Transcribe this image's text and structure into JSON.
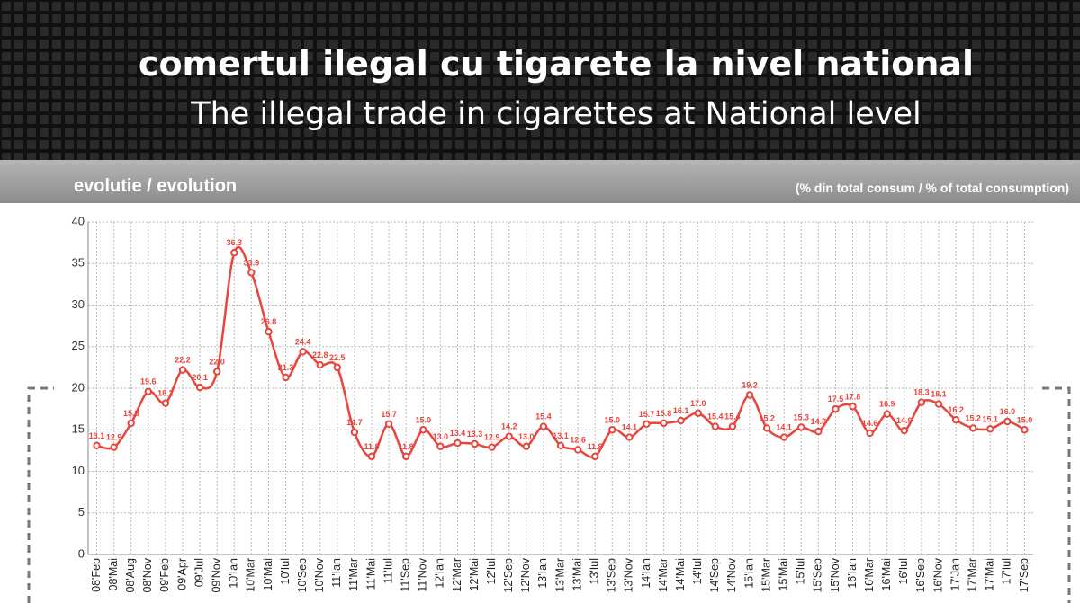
{
  "chart_data": {
    "type": "line",
    "title": "comertul ilegal cu tigarete la nivel national",
    "subtitle": "The illegal trade in cigarettes at National level",
    "panel_title": "evolutie / evolution",
    "unit_label": "(% din total consum / % of total consumption)",
    "categories": [
      "08'Feb",
      "08'Mai",
      "08'Aug",
      "08'Nov",
      "09'Feb",
      "09'Apr",
      "09'Jul",
      "09'Nov",
      "10'Ian",
      "10'Mar",
      "10'Mai",
      "10'Iul",
      "10'Sep",
      "10'Nov",
      "11'Ian",
      "11'Mar",
      "11'Mai",
      "11'Iul",
      "11'Sep",
      "11'Nov",
      "12'Ian",
      "12'Mar",
      "12'Mai",
      "12'Iul",
      "12'Sep",
      "12'Nov",
      "13'Ian",
      "13'Mar",
      "13'Mai",
      "13'Iul",
      "13'Sep",
      "13'Nov",
      "14'Ian",
      "14'Mar",
      "14'Mai",
      "14'Iul",
      "14'Sep",
      "14'Nov",
      "15'Ian",
      "15'Mar",
      "15'Mai",
      "15'Iul",
      "15'Sep",
      "15'Nov",
      "16'Ian",
      "16'Mar",
      "16'Mai",
      "16'Iul",
      "16'Sep",
      "16'Nov",
      "17'Jan",
      "17'Mar",
      "17'Mai",
      "17'Iul",
      "17'Sep"
    ],
    "values": [
      13.1,
      12.9,
      15.8,
      19.6,
      18.2,
      22.2,
      20.1,
      22.0,
      36.3,
      33.9,
      26.8,
      21.3,
      24.4,
      22.8,
      22.5,
      14.7,
      11.8,
      15.7,
      11.8,
      15.0,
      13.0,
      13.4,
      13.3,
      12.9,
      14.2,
      13.0,
      15.4,
      13.1,
      12.6,
      11.8,
      15.0,
      14.1,
      15.7,
      15.8,
      16.1,
      17.0,
      15.4,
      15.4,
      19.2,
      15.2,
      14.1,
      15.3,
      14.8,
      17.5,
      17.8,
      14.6,
      16.9,
      14.9,
      18.3,
      18.1,
      16.2,
      15.2,
      15.1,
      16.0,
      15.0
    ],
    "value_labels": [
      "13.1",
      "12.9",
      "15.8",
      "19.6",
      "18.2",
      "22.2",
      "20.1",
      "22.0",
      "36.3",
      "33.9",
      "26.8",
      "21.3",
      "24.4",
      "22.8",
      "22.5",
      "14.7",
      "11.8",
      "15.7",
      "11.8",
      "15.0",
      "13.0",
      "13.4",
      "13.3",
      "12.9",
      "14.2",
      "13.0",
      "15.4",
      "13.1",
      "12.6",
      "11.8",
      "15.0",
      "14.1",
      "15.7",
      "15.8",
      "16.1",
      "17.0",
      "15.4",
      "15.4",
      "19.2",
      "15.2",
      "14.1",
      "15.3",
      "14.8",
      "17.5",
      "17.8",
      "14.6",
      "16.9",
      "14.9",
      "18.3",
      "18.1",
      "16.2",
      "15.2",
      "15.1",
      "16.0",
      "15.0"
    ],
    "color": "#e8453c",
    "ylim": [
      0,
      40
    ],
    "yticks": [
      0,
      5,
      10,
      15,
      20,
      25,
      30,
      35,
      40
    ],
    "grid": true
  }
}
